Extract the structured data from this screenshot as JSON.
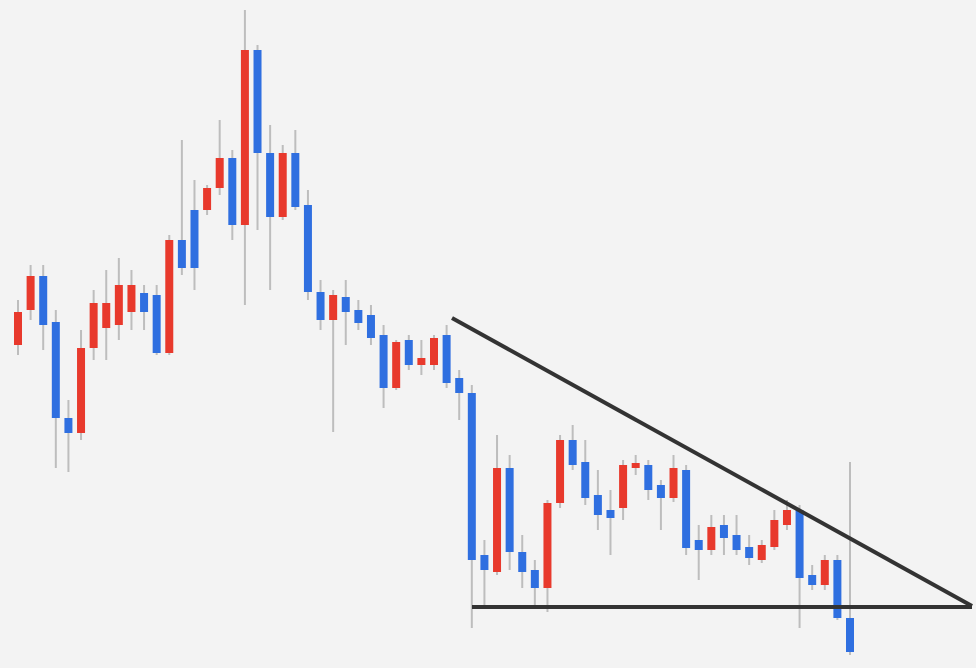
{
  "chart_data": {
    "type": "candlestick",
    "open": [
      323,
      358,
      392,
      346,
      250,
      235,
      320,
      340,
      343,
      356,
      375,
      373,
      315,
      428,
      458,
      458,
      480,
      510,
      443,
      618,
      515,
      451,
      515,
      463,
      376,
      348,
      371,
      358,
      353,
      333,
      280,
      328,
      303,
      303,
      333,
      290,
      275,
      113,
      96,
      200,
      116,
      98,
      80,
      165,
      228,
      206,
      173,
      158,
      160,
      200,
      203,
      183,
      170,
      198,
      128,
      118,
      143,
      133,
      121,
      108,
      121,
      143,
      158,
      93,
      83,
      108,
      50
    ],
    "high": [
      368,
      403,
      403,
      358,
      268,
      338,
      378,
      398,
      410,
      398,
      383,
      383,
      433,
      528,
      488,
      483,
      548,
      518,
      658,
      623,
      543,
      523,
      538,
      478,
      388,
      378,
      388,
      368,
      363,
      343,
      328,
      333,
      328,
      333,
      343,
      298,
      283,
      128,
      233,
      213,
      133,
      108,
      168,
      233,
      243,
      228,
      198,
      178,
      208,
      213,
      208,
      188,
      213,
      203,
      143,
      153,
      153,
      153,
      133,
      128,
      158,
      168,
      163,
      103,
      113,
      113,
      206
    ],
    "low": [
      313,
      348,
      318,
      200,
      196,
      228,
      308,
      308,
      328,
      338,
      338,
      313,
      313,
      393,
      378,
      453,
      473,
      428,
      363,
      438,
      378,
      448,
      458,
      368,
      338,
      236,
      323,
      338,
      323,
      260,
      278,
      298,
      293,
      298,
      280,
      248,
      40,
      60,
      93,
      98,
      80,
      63,
      56,
      160,
      198,
      163,
      138,
      113,
      148,
      193,
      168,
      138,
      166,
      113,
      88,
      113,
      113,
      113,
      103,
      105,
      118,
      138,
      40,
      78,
      78,
      48,
      13
    ],
    "close": [
      356,
      392,
      343,
      250,
      235,
      320,
      365,
      365,
      383,
      383,
      356,
      315,
      428,
      400,
      400,
      480,
      510,
      443,
      618,
      515,
      451,
      515,
      461,
      376,
      348,
      373,
      356,
      345,
      330,
      280,
      326,
      303,
      310,
      330,
      285,
      275,
      108,
      98,
      200,
      116,
      96,
      80,
      165,
      228,
      203,
      170,
      153,
      150,
      203,
      205,
      178,
      170,
      200,
      120,
      118,
      141,
      130,
      118,
      110,
      123,
      148,
      158,
      90,
      83,
      108,
      50,
      16
    ],
    "ylim": [
      0,
      668
    ],
    "up_color": "#e8392c",
    "down_color": "#2f6fe0",
    "wick_color": "#bdbdbd"
  }
}
